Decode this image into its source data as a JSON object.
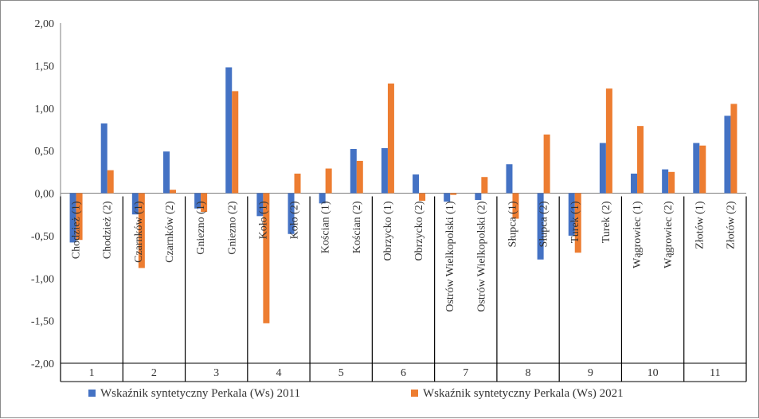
{
  "chart_data": {
    "type": "bar",
    "title": "",
    "xlabel": "",
    "ylabel": "",
    "ylim": [
      -2.0,
      2.0
    ],
    "yticks": [
      "2,00",
      "1,50",
      "1,00",
      "0,50",
      "0,00",
      "-0,50",
      "-1,00",
      "-1,50",
      "-2,00"
    ],
    "categories": [
      "Chodzież (1)",
      "Chodzież (2)",
      "Czarnków (1)",
      "Czarnków (2)",
      "Gniezno (1)",
      "Gniezno (2)",
      "Koło (1)",
      "Koło (2)",
      "Kościan (1)",
      "Kościan (2)",
      "Obrzycko (1)",
      "Obrzycko (2)",
      "Ostrów Wielkopolski (1)",
      "Ostrów Wielkopolski (2)",
      "Słupca (1)",
      "Słupca (2)",
      "Turek (1)",
      "Turek (2)",
      "Wągrowiec (1)",
      "Wągrowiec (2)",
      "Złotów (1)",
      "Złotów (2)"
    ],
    "groups": [
      "1",
      "2",
      "3",
      "4",
      "5",
      "6",
      "7",
      "8",
      "9",
      "10",
      "11"
    ],
    "series": [
      {
        "name": "Wskaźnik syntetyczny Perkala (Ws) 2011",
        "color": "#4472C4",
        "values": [
          -0.58,
          0.82,
          -0.25,
          0.49,
          -0.18,
          1.48,
          -0.27,
          -0.48,
          -0.12,
          0.52,
          0.53,
          0.22,
          -0.1,
          -0.08,
          0.34,
          -0.78,
          -0.5,
          0.59,
          0.23,
          0.28,
          0.59,
          0.91
        ]
      },
      {
        "name": "Wskaźnik syntetyczny Perkala (Ws) 2021",
        "color": "#ED7D31",
        "values": [
          -0.55,
          0.27,
          -0.88,
          0.04,
          -0.22,
          1.2,
          -1.53,
          0.23,
          0.29,
          0.38,
          1.29,
          -0.09,
          -0.02,
          0.19,
          -0.3,
          0.69,
          -0.7,
          1.23,
          0.79,
          0.25,
          0.56,
          1.05
        ]
      }
    ],
    "grid": false,
    "legend": "bottom"
  }
}
